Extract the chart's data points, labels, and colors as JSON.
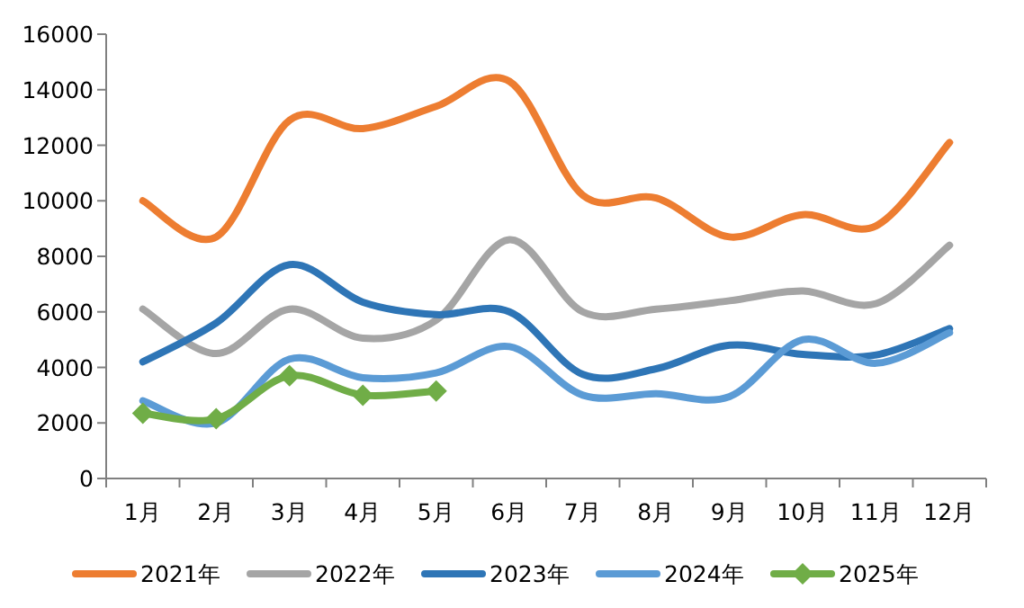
{
  "chart_data": {
    "type": "line",
    "categories": [
      "1月",
      "2月",
      "3月",
      "4月",
      "5月",
      "6月",
      "7月",
      "8月",
      "9月",
      "10月",
      "11月",
      "12月"
    ],
    "ylim": [
      0,
      16000
    ],
    "yticks": [
      0,
      2000,
      4000,
      6000,
      8000,
      10000,
      12000,
      14000,
      16000
    ],
    "grid": false,
    "legend": "bottom",
    "line_style": "solid",
    "series": [
      {
        "name": "2021年",
        "color": "#ed7d31",
        "marker": "none",
        "values": [
          10000,
          8700,
          12900,
          12600,
          13400,
          14300,
          10200,
          10100,
          8700,
          9500,
          9100,
          12100
        ]
      },
      {
        "name": "2022年",
        "color": "#a5a5a5",
        "marker": "none",
        "values": [
          6100,
          4500,
          6100,
          5050,
          5700,
          8600,
          6000,
          6100,
          6400,
          6750,
          6300,
          8400
        ]
      },
      {
        "name": "2023年",
        "color": "#2e75b6",
        "marker": "none",
        "values": [
          4200,
          5600,
          7700,
          6350,
          5900,
          6000,
          3750,
          3950,
          4800,
          4470,
          4450,
          5400
        ]
      },
      {
        "name": "2024年",
        "color": "#5b9bd5",
        "marker": "none",
        "values": [
          2800,
          2000,
          4300,
          3630,
          3800,
          4750,
          3000,
          3050,
          2950,
          5000,
          4150,
          5250
        ]
      },
      {
        "name": "2025年",
        "color": "#70ad47",
        "marker": "diamond",
        "values": [
          2350,
          2150,
          3700,
          3000,
          3150,
          null,
          null,
          null,
          null,
          null,
          null,
          null
        ]
      }
    ]
  }
}
